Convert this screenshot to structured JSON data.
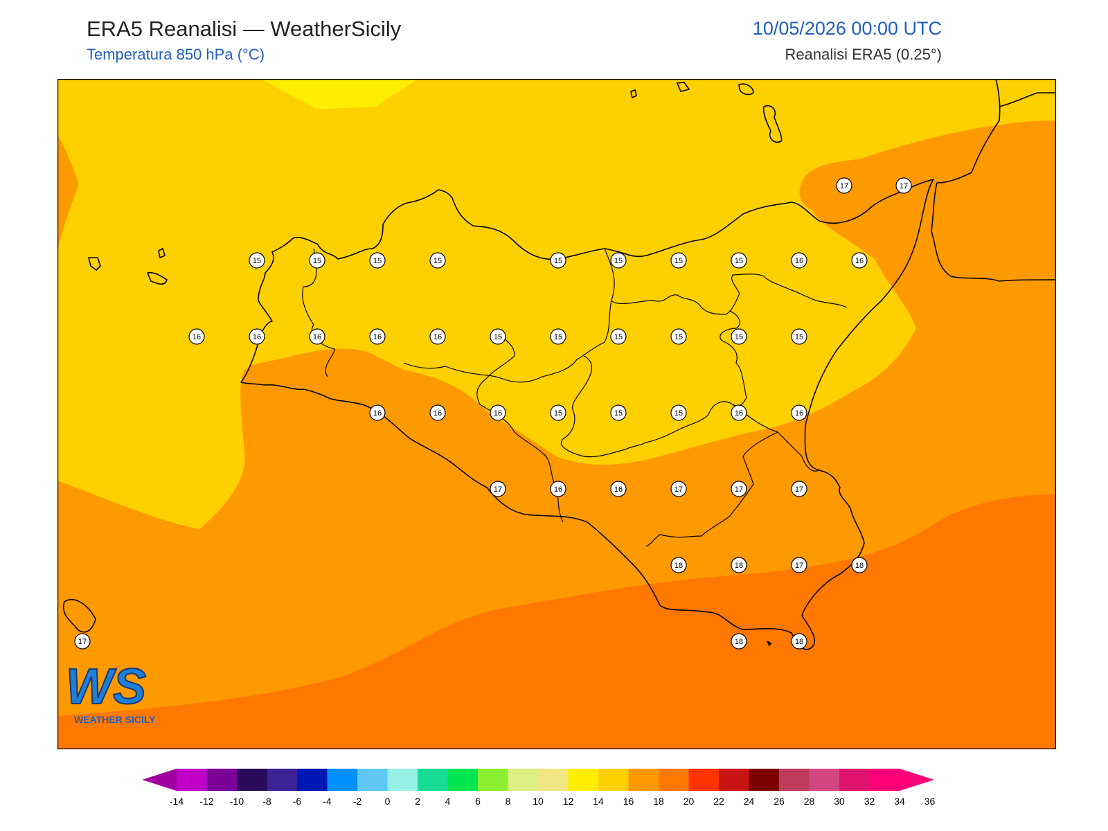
{
  "header": {
    "title": "ERA5 Reanalisi — WeatherSicily",
    "subtitle": "Temperatura 850 hPa (°C)",
    "datetime": "10/05/2026 00:00 UTC",
    "source": "Reanalisi ERA5 (0.25°)"
  },
  "logo": {
    "mark": "WS",
    "text": "WEATHER SICILY"
  },
  "map_data": {
    "variable": "Temperatura 850 hPa",
    "unit": "°C",
    "colors": {
      "level_12_14": "#ffee00",
      "level_14_16": "#ffd000",
      "level_16_18": "#ff9900",
      "level_18_20": "#ff7800"
    },
    "station_values": [
      {
        "v": "17"
      },
      {
        "v": "17"
      },
      {
        "v": "15"
      },
      {
        "v": "15"
      },
      {
        "v": "15"
      },
      {
        "v": "15"
      },
      {
        "v": "15"
      },
      {
        "v": "15"
      },
      {
        "v": "15"
      },
      {
        "v": "15"
      },
      {
        "v": "16"
      },
      {
        "v": "16"
      },
      {
        "v": "16"
      },
      {
        "v": "16"
      },
      {
        "v": "16"
      },
      {
        "v": "16"
      },
      {
        "v": "16"
      },
      {
        "v": "15"
      },
      {
        "v": "15"
      },
      {
        "v": "15"
      },
      {
        "v": "15"
      },
      {
        "v": "15"
      },
      {
        "v": "15"
      },
      {
        "v": "16"
      },
      {
        "v": "16"
      },
      {
        "v": "16"
      },
      {
        "v": "15"
      },
      {
        "v": "15"
      },
      {
        "v": "15"
      },
      {
        "v": "16"
      },
      {
        "v": "16"
      },
      {
        "v": "17"
      },
      {
        "v": "16"
      },
      {
        "v": "16"
      },
      {
        "v": "17"
      },
      {
        "v": "17"
      },
      {
        "v": "17"
      },
      {
        "v": "18"
      },
      {
        "v": "18"
      },
      {
        "v": "17"
      },
      {
        "v": "18"
      },
      {
        "v": "17"
      },
      {
        "v": "18"
      },
      {
        "v": "18"
      }
    ]
  },
  "colorbar": {
    "ticks": [
      "-14",
      "-12",
      "-10",
      "-8",
      "-6",
      "-4",
      "-2",
      "0",
      "2",
      "4",
      "6",
      "8",
      "10",
      "12",
      "14",
      "16",
      "18",
      "20",
      "22",
      "24",
      "26",
      "28",
      "30",
      "32",
      "34",
      "36"
    ],
    "colors": [
      "#c000c8",
      "#7a0098",
      "#2a0a5a",
      "#3c2396",
      "#0018b4",
      "#0090ff",
      "#5fc8f5",
      "#96f0e6",
      "#19dc96",
      "#00e650",
      "#8cf032",
      "#dcf082",
      "#f0e682",
      "#ffee00",
      "#ffd000",
      "#ff9900",
      "#ff7800",
      "#ff3200",
      "#c81414",
      "#7d0000",
      "#bf3b5a",
      "#d24682",
      "#e0146e",
      "#ff0078"
    ],
    "low_color": "#a000a0",
    "high_color": "#ff0078"
  }
}
